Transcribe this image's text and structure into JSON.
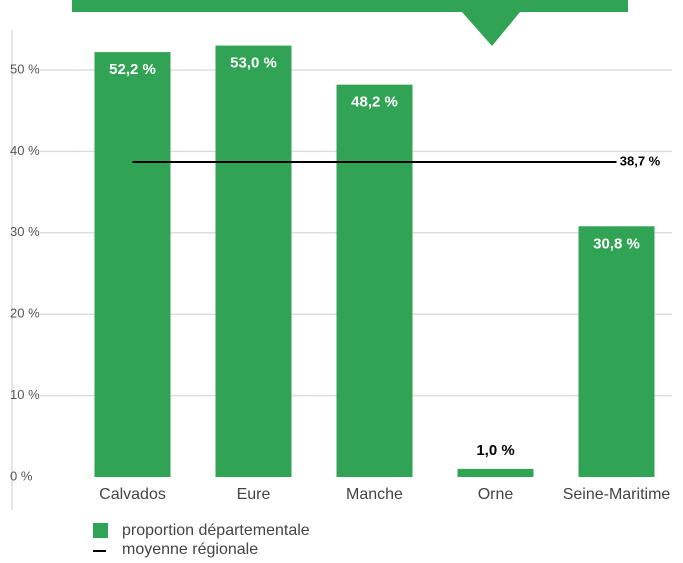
{
  "chart_data": {
    "type": "bar",
    "categories": [
      "Calvados",
      "Eure",
      "Manche",
      "Orne",
      "Seine-Maritime"
    ],
    "series": [
      {
        "name": "proportion départementale",
        "color": "#31a354",
        "values": [
          52.2,
          53.0,
          48.2,
          1.0,
          30.8
        ],
        "value_labels": [
          "52,2 %",
          "53,0 %",
          "48,2 %",
          "1,0 %",
          "30,8 %"
        ]
      }
    ],
    "reference": {
      "name": "moyenne régionale",
      "value": 38.7,
      "value_label": "38,7 %",
      "color": "#000000"
    },
    "ylim": [
      0,
      55
    ],
    "yticks": [
      {
        "value": 0,
        "label": "0 %"
      },
      {
        "value": 10,
        "label": "10 %"
      },
      {
        "value": 20,
        "label": "20 %"
      },
      {
        "value": 30,
        "label": "30 %"
      },
      {
        "value": 40,
        "label": "40 %"
      },
      {
        "value": 50,
        "label": "50 %"
      }
    ],
    "grid": true
  }
}
